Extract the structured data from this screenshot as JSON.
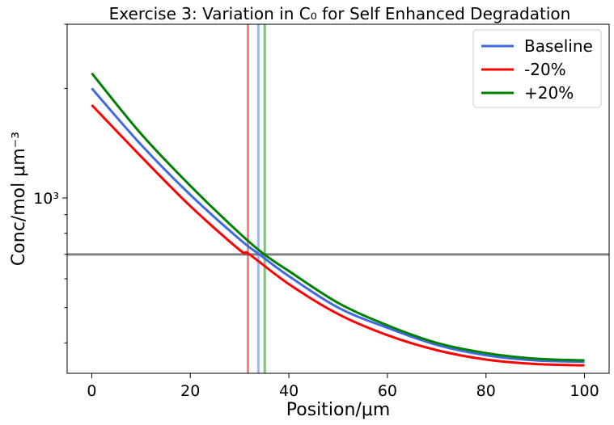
{
  "chart_data": {
    "type": "line",
    "title": "Exercise 3: Variation in C₀ for Self Enhanced Degradation",
    "xlabel": "Position/μm",
    "ylabel": "Conc/mol μm⁻³",
    "yscale": "log",
    "xlim": [
      -5,
      105
    ],
    "ylim": [
      330,
      3000
    ],
    "x_ticks": [
      0,
      20,
      40,
      60,
      80,
      100
    ],
    "x_tick_labels": [
      "0",
      "20",
      "40",
      "60",
      "80",
      "100"
    ],
    "y_ticks": [
      1000
    ],
    "y_tick_labels": [
      "10³"
    ],
    "grid": false,
    "legend_position": "top-right",
    "series": [
      {
        "name": "Baseline",
        "color": "#4169E1",
        "x": [
          0,
          10,
          20,
          30,
          34,
          40,
          50,
          60,
          70,
          80,
          90,
          100
        ],
        "y": [
          2000,
          1400,
          1020,
          770,
          700,
          610,
          500,
          440,
          395,
          370,
          358,
          355
        ]
      },
      {
        "name": "-20%",
        "color": "#FF0000",
        "x": [
          0,
          10,
          20,
          30,
          32,
          40,
          50,
          60,
          70,
          80,
          90,
          100
        ],
        "y": [
          1800,
          1300,
          950,
          720,
          700,
          580,
          480,
          420,
          382,
          360,
          350,
          347
        ]
      },
      {
        "name": "+20%",
        "color": "#008000",
        "x": [
          0,
          10,
          20,
          30,
          35,
          40,
          50,
          60,
          70,
          80,
          90,
          100
        ],
        "y": [
          2200,
          1500,
          1080,
          800,
          700,
          630,
          515,
          447,
          400,
          375,
          362,
          358
        ]
      }
    ],
    "reference_lines": [
      {
        "orientation": "horizontal",
        "y": 700,
        "color": "#808080"
      },
      {
        "orientation": "vertical",
        "x": 31.7,
        "color": "#FF0000",
        "opacity": 0.5
      },
      {
        "orientation": "vertical",
        "x": 33.8,
        "color": "#4169E1",
        "opacity": 0.5
      },
      {
        "orientation": "vertical",
        "x": 35.1,
        "color": "#008000",
        "opacity": 0.5
      }
    ]
  }
}
